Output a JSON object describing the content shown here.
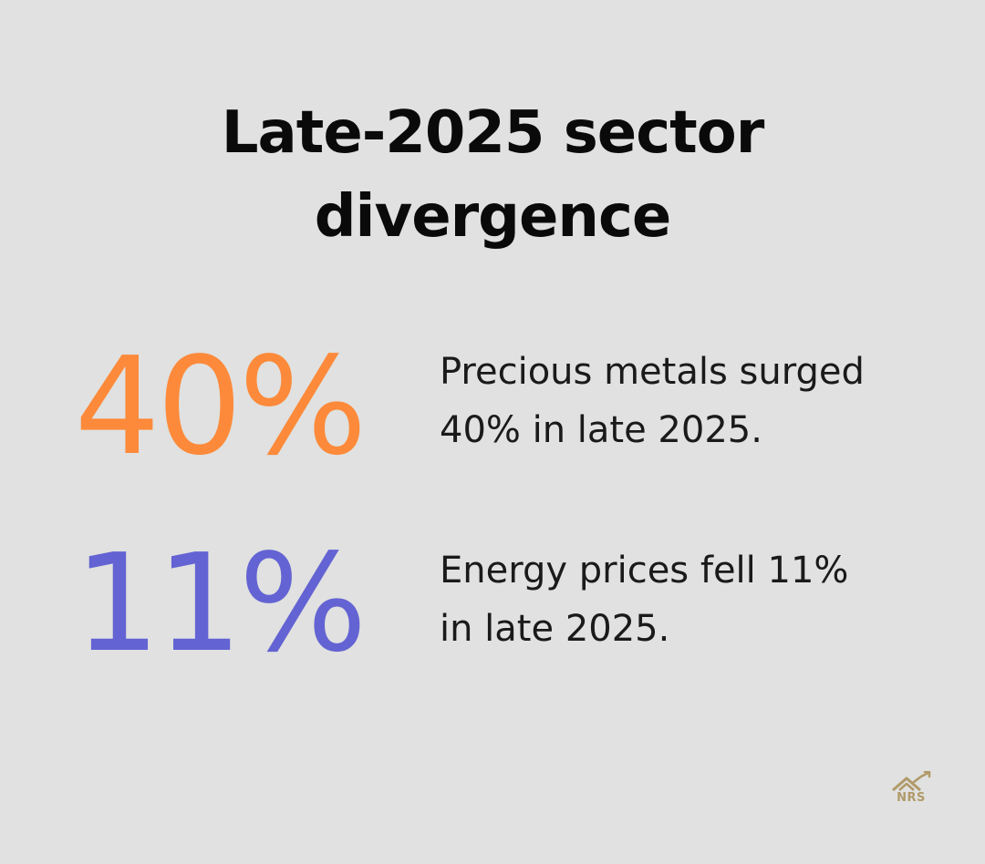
{
  "title": {
    "line1": "Late-2025 sector",
    "line2": "divergence"
  },
  "stats": [
    {
      "value": "40%",
      "description_line1": "Precious metals surged",
      "description_line2": "40% in late 2025.",
      "color": "#fc8a3a"
    },
    {
      "value": "11%",
      "description_line1": "Energy prices fell 11%",
      "description_line2": "in late 2025.",
      "color": "#6363d3"
    }
  ],
  "logo": {
    "text": "NRS",
    "icon": "house-chart-logo",
    "color": "#b09a6a"
  },
  "colors": {
    "background": "#e0e1e0",
    "title": "#0a0a0a",
    "description": "#1a1a1a"
  }
}
